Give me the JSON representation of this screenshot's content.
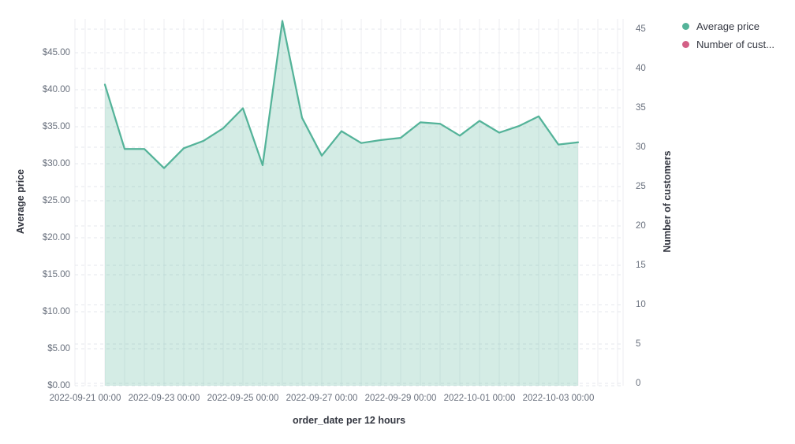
{
  "chart_data": {
    "type": "area",
    "xlabel": "order_date per 12 hours",
    "x": [
      "2022-09-21 12:00",
      "2022-09-22 00:00",
      "2022-09-22 12:00",
      "2022-09-23 00:00",
      "2022-09-23 12:00",
      "2022-09-24 00:00",
      "2022-09-24 12:00",
      "2022-09-25 00:00",
      "2022-09-25 12:00",
      "2022-09-26 00:00",
      "2022-09-26 12:00",
      "2022-09-27 00:00",
      "2022-09-27 12:00",
      "2022-09-28 00:00",
      "2022-09-28 12:00",
      "2022-09-29 00:00",
      "2022-09-29 12:00",
      "2022-09-30 00:00",
      "2022-09-30 12:00",
      "2022-10-01 00:00",
      "2022-10-01 12:00",
      "2022-10-02 00:00",
      "2022-10-02 12:00",
      "2022-10-03 00:00",
      "2022-10-03 12:00"
    ],
    "series": [
      {
        "name": "Average price",
        "axis": "left",
        "color": "#54B399",
        "values": [
          40.7,
          32.0,
          32.0,
          29.4,
          32.1,
          33.1,
          34.8,
          37.5,
          29.8,
          49.3,
          36.2,
          31.1,
          34.4,
          32.8,
          33.2,
          33.5,
          35.6,
          35.4,
          33.8,
          35.8,
          34.2,
          35.1,
          36.4,
          32.6,
          32.9
        ]
      },
      {
        "name": "Number of customers",
        "axis": "right",
        "color": "#D36086",
        "values": []
      }
    ],
    "left_axis": {
      "title": "Average price",
      "tick_values": [
        0,
        5,
        10,
        15,
        20,
        25,
        30,
        35,
        40,
        45
      ],
      "tick_labels": [
        "$0.00",
        "$5.00",
        "$10.00",
        "$15.00",
        "$20.00",
        "$25.00",
        "$30.00",
        "$35.00",
        "$40.00",
        "$45.00"
      ],
      "range": [
        0,
        49.6
      ]
    },
    "right_axis": {
      "title": "Number of customers",
      "tick_values": [
        0,
        5,
        10,
        15,
        20,
        25,
        30,
        35,
        40,
        45
      ],
      "tick_labels": [
        "0",
        "5",
        "10",
        "15",
        "20",
        "25",
        "30",
        "35",
        "40",
        "45"
      ],
      "range": [
        0,
        46.6
      ]
    },
    "x_axis_tick_labels": [
      "2022-09-21 00:00",
      "2022-09-23 00:00",
      "2022-09-25 00:00",
      "2022-09-27 00:00",
      "2022-09-29 00:00",
      "2022-10-01 00:00",
      "2022-10-03 00:00"
    ],
    "grid": true,
    "legend_position": "right",
    "legend": [
      {
        "label": "Average price",
        "color": "#54B399"
      },
      {
        "label": "Number of cust...",
        "color": "#D36086"
      }
    ]
  },
  "colors": {
    "line": "#54B399",
    "area_fill": "rgba(84,179,153,0.25)",
    "grid_vertical": "#ecEEF2",
    "grid_horizontal": "#e4e7ec",
    "tick_text": "#69707D",
    "title_text": "#343741"
  }
}
